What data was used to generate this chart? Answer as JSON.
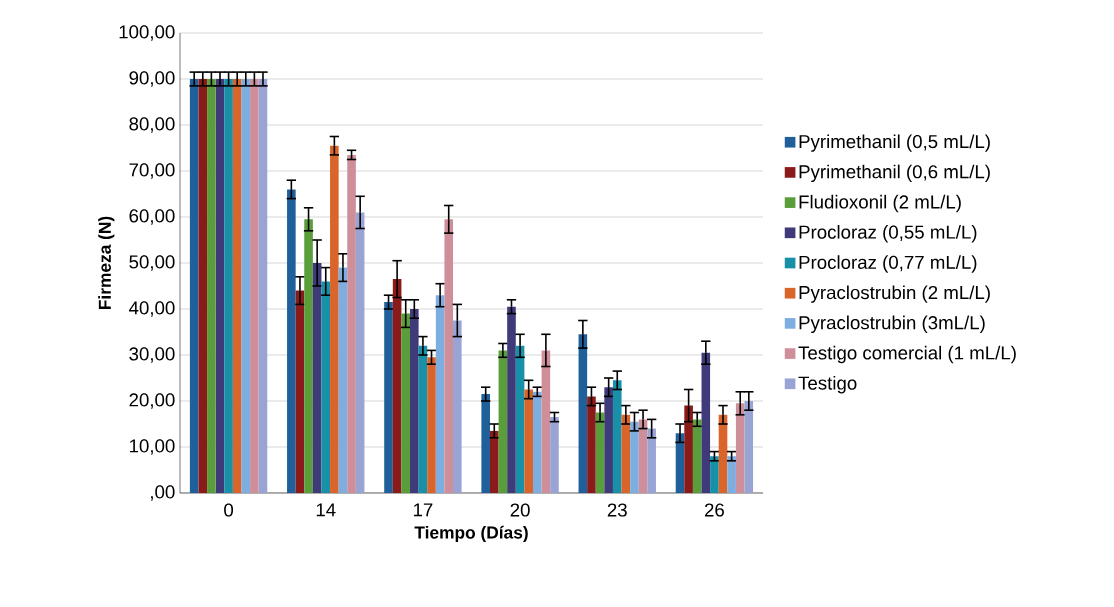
{
  "chart_data": {
    "type": "bar",
    "xlabel": "Tiempo (Días)",
    "ylabel": "Firmeza (N)",
    "categories": [
      "0",
      "14",
      "17",
      "20",
      "23",
      "26"
    ],
    "ylim": [
      0,
      100
    ],
    "yticks": [
      {
        "value": 0,
        "label": ",00"
      },
      {
        "value": 10,
        "label": "10,00"
      },
      {
        "value": 20,
        "label": "20,00"
      },
      {
        "value": 30,
        "label": "30,00"
      },
      {
        "value": 40,
        "label": "40,00"
      },
      {
        "value": 50,
        "label": "50,00"
      },
      {
        "value": 60,
        "label": "60,00"
      },
      {
        "value": 70,
        "label": "70,00"
      },
      {
        "value": 80,
        "label": "80,00"
      },
      {
        "value": 90,
        "label": "90,00"
      },
      {
        "value": 100,
        "label": "100,00"
      }
    ],
    "grid": "y",
    "legend": "right",
    "series": [
      {
        "name": "Pyrimethanil (0,5 mL/L)",
        "color": "#1f5f9a",
        "values": [
          90,
          66,
          41.5,
          21.5,
          34.5,
          13
        ],
        "errors": [
          1.5,
          2,
          1.5,
          1.5,
          3,
          2
        ]
      },
      {
        "name": "Pyrimethanil (0,6 mL/L)",
        "color": "#8b1a1a",
        "values": [
          90,
          44,
          46.5,
          13.5,
          21,
          19
        ],
        "errors": [
          1.5,
          3,
          4,
          1.5,
          2,
          3.5
        ]
      },
      {
        "name": "Fludioxonil (2 mL/L)",
        "color": "#5a9e3c",
        "values": [
          90,
          59.5,
          39,
          31,
          17.5,
          16
        ],
        "errors": [
          1.5,
          2.5,
          3,
          1.5,
          2,
          1.5
        ]
      },
      {
        "name": "Procloraz (0,55 mL/L)",
        "color": "#3f3a7a",
        "values": [
          90,
          50,
          40,
          40.5,
          23,
          30.5
        ],
        "errors": [
          1.5,
          5,
          2,
          1.5,
          2,
          2.5
        ]
      },
      {
        "name": "Procloraz (0,77 mL/L)",
        "color": "#1790a8",
        "values": [
          90,
          46,
          32,
          32,
          24.5,
          8
        ],
        "errors": [
          1.5,
          3,
          2,
          2.5,
          2,
          1
        ]
      },
      {
        "name": "Pyraclostrubin (2 mL/L)",
        "color": "#d9652b",
        "values": [
          90,
          75.5,
          29.5,
          22.5,
          17,
          17
        ],
        "errors": [
          1.5,
          2,
          1.5,
          2,
          2,
          2
        ]
      },
      {
        "name": "Pyraclostrubin (3mL/L)",
        "color": "#7eaee0",
        "values": [
          90,
          49,
          43,
          22,
          15.5,
          8
        ],
        "errors": [
          1.5,
          3,
          2.5,
          1,
          2,
          1
        ]
      },
      {
        "name": "Testigo comercial (1 mL/L)",
        "color": "#cf8f9a",
        "values": [
          90,
          73.5,
          59.5,
          31,
          16,
          19.5
        ],
        "errors": [
          1.5,
          1,
          3,
          3.5,
          2,
          2.5
        ]
      },
      {
        "name": "Testigo",
        "color": "#9aa4d4",
        "values": [
          90,
          61,
          37.5,
          16.5,
          14,
          20
        ],
        "errors": [
          1.5,
          3.5,
          3.5,
          1,
          2,
          2
        ]
      }
    ]
  }
}
